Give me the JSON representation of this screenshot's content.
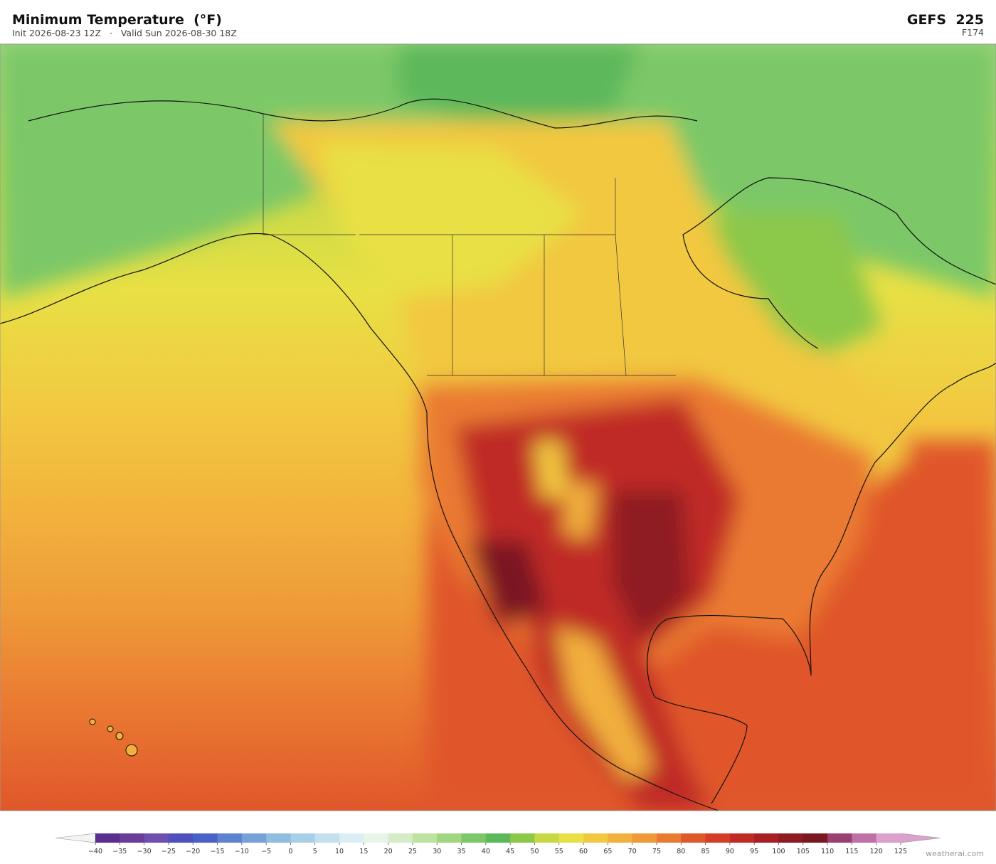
{
  "header": {
    "title": "Minimum Temperature  (°F)",
    "subtitle": "Init 2026-08-23 12Z   ·   Valid Sun 2026-08-30 18Z",
    "model": "GEFS  225",
    "forecast_hour": "F174"
  },
  "colorbar": {
    "ticks": [
      {
        "value": -40,
        "label": "−40"
      },
      {
        "value": -35,
        "label": "−35"
      },
      {
        "value": -30,
        "label": "−30"
      },
      {
        "value": -25,
        "label": "−25"
      },
      {
        "value": -20,
        "label": "−20"
      },
      {
        "value": -15,
        "label": "−15"
      },
      {
        "value": -10,
        "label": "−10"
      },
      {
        "value": -5,
        "label": "−5"
      },
      0,
      5,
      10,
      15,
      20,
      25,
      30,
      35,
      40,
      45,
      50,
      55,
      60,
      65,
      70,
      75,
      80,
      85,
      90,
      95,
      100,
      105,
      110,
      115,
      120,
      125
    ],
    "colors": [
      "#5a2d91",
      "#6a3d9a",
      "#6f4fb0",
      "#4f4fc0",
      "#4a62c8",
      "#5d82d0",
      "#78a0d8",
      "#90bce0",
      "#a8cfe8",
      "#c4e0ef",
      "#dbeef3",
      "#e8f4ea",
      "#d6ecc8",
      "#bde3a0",
      "#9fd67f",
      "#7cc868",
      "#5cb85a",
      "#8cc84a",
      "#c6d945",
      "#e8e045",
      "#f2c840",
      "#f2b03c",
      "#ee9a38",
      "#ea7a32",
      "#e0572a",
      "#d43e28",
      "#c02a25",
      "#a81e22",
      "#8e1a22",
      "#7a1820",
      "#9a4070",
      "#c070a8",
      "#dba0cc"
    ],
    "under_color": "#f4f4f4",
    "over_color": "#dba0cc"
  },
  "watermark": "weatherai.com"
}
